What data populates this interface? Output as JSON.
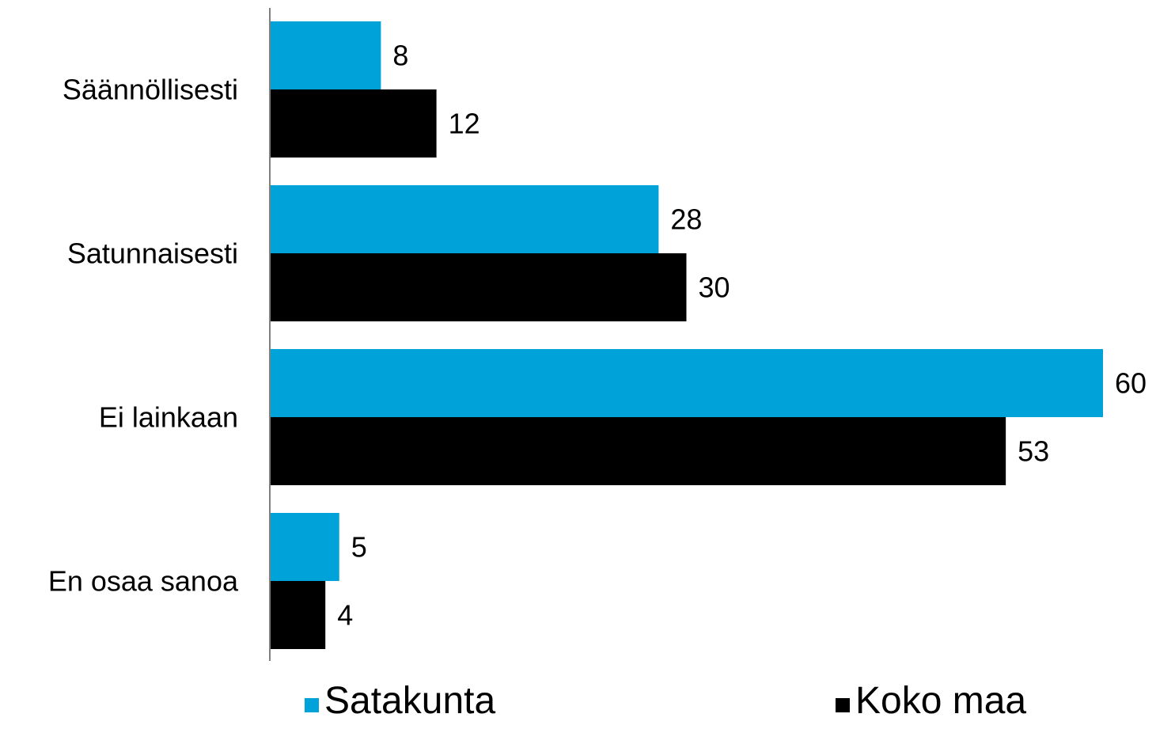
{
  "chart_data": {
    "type": "bar",
    "orientation": "horizontal",
    "categories": [
      "Säännöllisesti",
      "Satunnaisesti",
      "Ei lainkaan",
      "En osaa sanoa"
    ],
    "series": [
      {
        "name": "Satakunta",
        "values": [
          8,
          28,
          60,
          5
        ],
        "color": "#00A3D9"
      },
      {
        "name": "Koko maa",
        "values": [
          12,
          30,
          53,
          4
        ],
        "color": "#000000"
      }
    ],
    "xlim": [
      0,
      60
    ],
    "grid": false,
    "legend_position": "bottom",
    "data_labels": true
  }
}
